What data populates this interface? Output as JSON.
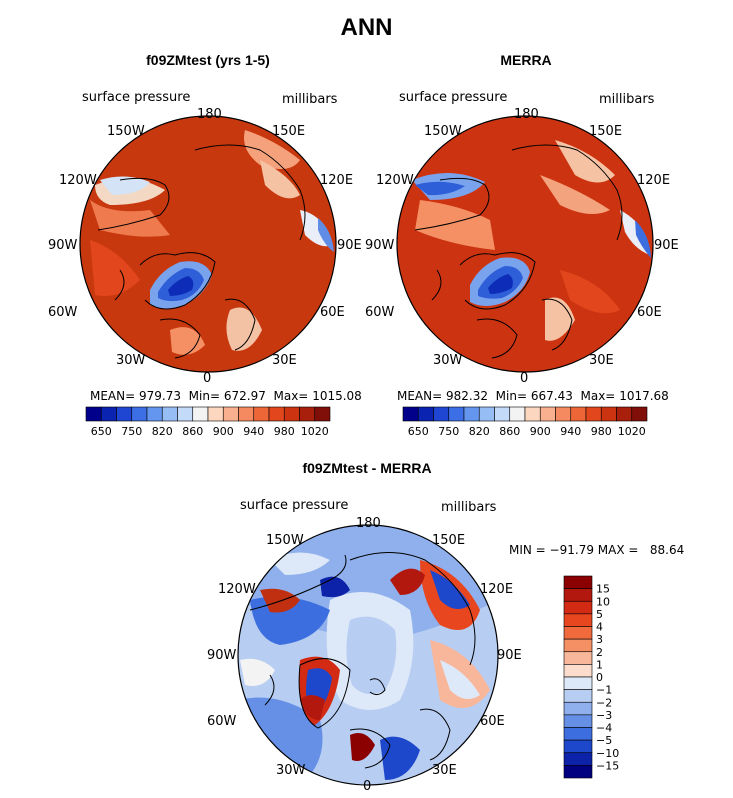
{
  "title": "ANN",
  "panels": [
    {
      "id": "model",
      "title": "f09ZMtest (yrs 1-5)",
      "variable": "surface pressure",
      "units": "millibars",
      "stats": {
        "mean_label": "MEAN=",
        "mean": "979.73",
        "min_label": "Min=",
        "min": "672.97",
        "max_label": "Max=",
        "max": "1015.08"
      }
    },
    {
      "id": "obs",
      "title": "MERRA",
      "variable": "surface pressure",
      "units": "millibars",
      "stats": {
        "mean_label": "MEAN=",
        "mean": "982.32",
        "min_label": "Min=",
        "min": "667.43",
        "max_label": "Max=",
        "max": "1017.68"
      }
    },
    {
      "id": "diff",
      "title": "f09ZMtest - MERRA",
      "variable": "surface pressure",
      "units": "millibars",
      "stats_text": "MIN = −91.79 MAX =   88.64"
    }
  ],
  "longitude_labels": [
    "180",
    "150E",
    "120E",
    "90E",
    "60E",
    "30E",
    "0",
    "30W",
    "60W",
    "90W",
    "120W",
    "150W"
  ],
  "abs_colorbar": {
    "tick_labels": [
      "650",
      "750",
      "820",
      "860",
      "900",
      "940",
      "980",
      "1020"
    ],
    "colors": [
      "#00008b",
      "#0a23b0",
      "#1e46d2",
      "#3c6ee6",
      "#6496f0",
      "#96bef5",
      "#c3daf8",
      "#f3f3f3",
      "#fcd6bf",
      "#f9b08e",
      "#f58a60",
      "#ec6638",
      "#e2461c",
      "#cc3310",
      "#a8200b",
      "#7f0f08"
    ]
  },
  "diff_colorbar": {
    "tick_labels": [
      "15",
      "10",
      "5",
      "4",
      "3",
      "2",
      "1",
      "0",
      "−1",
      "−2",
      "−3",
      "−4",
      "−5",
      "−10",
      "−15"
    ],
    "colors": [
      "#8b0000",
      "#b3180e",
      "#d32a14",
      "#e8461e",
      "#f06a3c",
      "#f59065",
      "#f8b79a",
      "#fbdccd",
      "#dde8f8",
      "#b7cdf2",
      "#8fb0ec",
      "#6690e6",
      "#3d6ee0",
      "#1e48cc",
      "#0c22a8",
      "#000080"
    ]
  }
}
